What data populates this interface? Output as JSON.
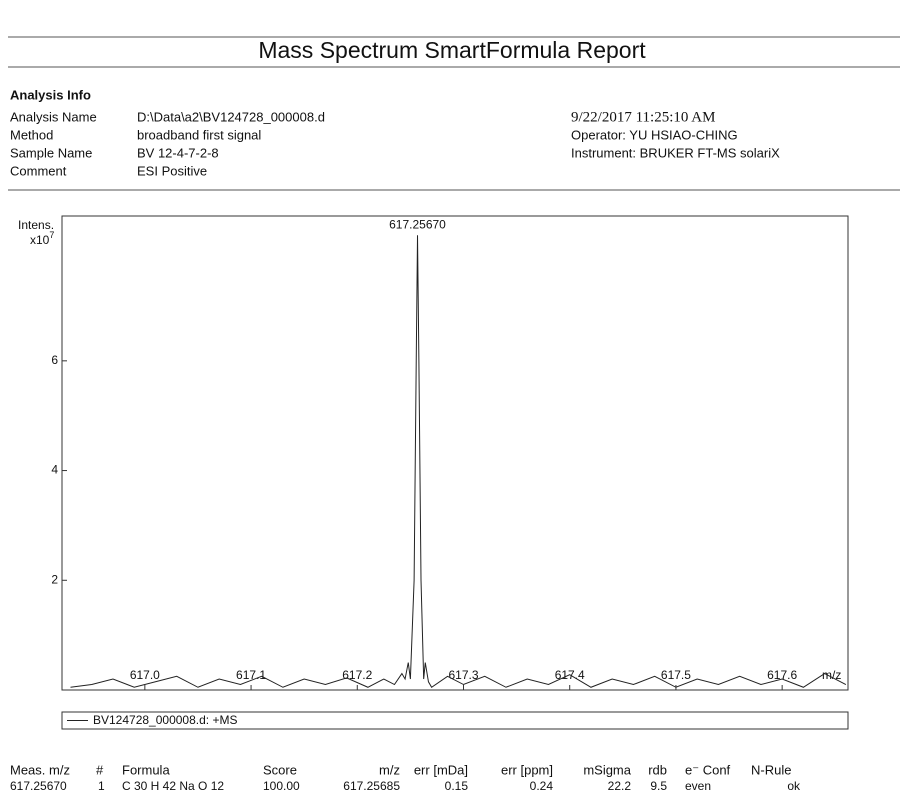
{
  "header": {
    "title": "Mass Spectrum SmartFormula Report"
  },
  "analysis_info": {
    "heading": "Analysis Info",
    "fields": [
      {
        "label": "Analysis Name",
        "value": "D:\\Data\\a2\\BV124728_000008.d"
      },
      {
        "label": "Method",
        "value": "broadband first signal"
      },
      {
        "label": "Sample Name",
        "value": "BV 12-4-7-2-8"
      },
      {
        "label": "Comment",
        "value": "ESI Positive"
      }
    ],
    "right": [
      "9/22/2017 11:25:10 AM",
      "Operator: YU HSIAO-CHING",
      "Instrument: BRUKER  FT-MS  solariX"
    ]
  },
  "chart_data": {
    "type": "line",
    "y_label": "Intens.",
    "y_scale": "x10",
    "y_scale_exp": "7",
    "x_label": "m/z",
    "x": [
      616.93,
      616.95,
      616.97,
      616.99,
      617.01,
      617.03,
      617.05,
      617.07,
      617.09,
      617.11,
      617.13,
      617.15,
      617.17,
      617.19,
      617.21,
      617.225,
      617.235,
      617.242,
      617.245,
      617.248,
      617.25,
      617.2535,
      617.2555,
      617.2567,
      617.258,
      617.26,
      617.2625,
      617.264,
      617.267,
      617.27,
      617.285,
      617.3,
      617.32,
      617.34,
      617.36,
      617.38,
      617.4,
      617.42,
      617.44,
      617.46,
      617.48,
      617.5,
      617.52,
      617.54,
      617.56,
      617.58,
      617.6,
      617.62,
      617.64,
      617.66
    ],
    "series": [
      {
        "name": "BV124728_000008.d: +MS",
        "color": "#222222",
        "values": [
          0.05,
          0.1,
          0.2,
          0.05,
          0.15,
          0.25,
          0.05,
          0.2,
          0.1,
          0.25,
          0.05,
          0.2,
          0.1,
          0.22,
          0.05,
          0.2,
          0.1,
          0.3,
          0.2,
          0.5,
          0.2,
          2,
          6,
          8.29,
          6,
          2,
          0.2,
          0.5,
          0.15,
          0.05,
          0.25,
          0.1,
          0.25,
          0.05,
          0.2,
          0.1,
          0.28,
          0.05,
          0.2,
          0.1,
          0.25,
          0.05,
          0.2,
          0.1,
          0.25,
          0.1,
          0.2,
          0.05,
          0.3,
          0.1
        ]
      }
    ],
    "annotations": [
      {
        "x": 617.2567,
        "y": 8.29,
        "label": "617.25670"
      }
    ],
    "xlim": [
      616.922,
      617.662
    ],
    "xticks": [
      {
        "value": 617,
        "label": "617.0"
      },
      617.1,
      617.2,
      617.3,
      617.4,
      617.5,
      617.6
    ],
    "ylim": [
      0,
      8.64
    ],
    "yticks": [
      2,
      4,
      6
    ]
  },
  "table": {
    "columns": [
      "Meas. m/z",
      "#",
      "Formula",
      "Score",
      "m/z",
      "err [mDa]",
      "err [ppm]",
      "mSigma",
      "rdb",
      "e⁻ Conf",
      "N-Rule"
    ],
    "rows": [
      [
        "617.25670",
        "1",
        "C 30 H 42 Na O 12",
        "100.00",
        "617.25685",
        "0.15",
        "0.24",
        "22.2",
        "9.5",
        "even",
        "ok"
      ]
    ]
  }
}
